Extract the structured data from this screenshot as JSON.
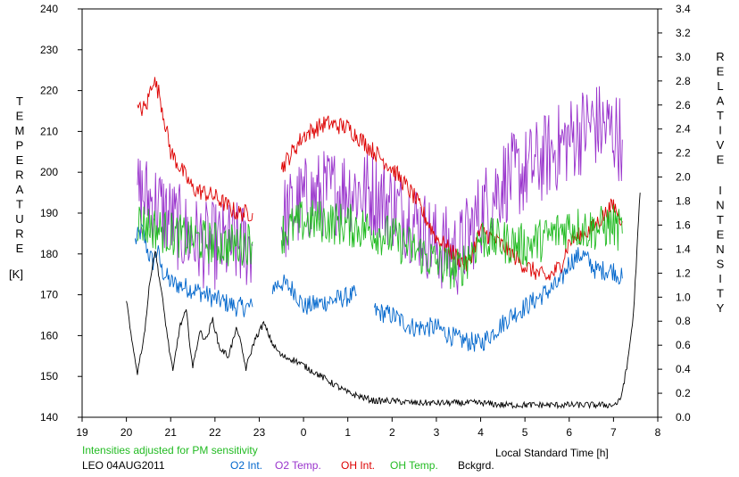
{
  "chart_data": {
    "type": "line",
    "station": "LEO 04AUG2011",
    "note": "Intensities adjusted for PM sensitivity",
    "xlabel": "Local Standard Time [h]",
    "ylabel_left_letters": [
      "T",
      "E",
      "M",
      "P",
      "E",
      "R",
      "A",
      "T",
      "U",
      "R",
      "E"
    ],
    "ylabel_left_unit": "[K]",
    "ylabel_right_letters": [
      "R",
      "E",
      "L",
      "A",
      "T",
      "I",
      "V",
      "E",
      "I",
      "N",
      "T",
      "E",
      "N",
      "S",
      "I",
      "T",
      "Y"
    ],
    "xlim": [
      19,
      32
    ],
    "x_tick_values": [
      19,
      20,
      21,
      22,
      23,
      24,
      25,
      26,
      27,
      28,
      29,
      30,
      31,
      32
    ],
    "x_tick_labels": [
      "19",
      "20",
      "21",
      "22",
      "23",
      "0",
      "1",
      "2",
      "3",
      "4",
      "5",
      "6",
      "7",
      "8"
    ],
    "ylim_left": [
      140,
      240
    ],
    "y_left_ticks": [
      "140",
      "150",
      "160",
      "170",
      "180",
      "190",
      "200",
      "210",
      "220",
      "230",
      "240"
    ],
    "ylim_right": [
      0.0,
      3.4
    ],
    "y_right_ticks": [
      "0.0",
      "0.2",
      "0.4",
      "0.6",
      "0.8",
      "1.0",
      "1.2",
      "1.4",
      "1.6",
      "1.8",
      "2.0",
      "2.2",
      "2.4",
      "2.6",
      "2.8",
      "3.0",
      "3.2",
      "3.4"
    ],
    "grid": false,
    "legend": [
      {
        "name": "O2 Int.",
        "color": "#0066cc"
      },
      {
        "name": "O2 Temp.",
        "color": "#9933cc"
      },
      {
        "name": "OH Int.",
        "color": "#dd0000"
      },
      {
        "name": "OH Temp.",
        "color": "#22bb22"
      },
      {
        "name": "Bckgrd.",
        "color": "#000000"
      }
    ],
    "note_color": "#22bb22",
    "series": [
      {
        "key": "o2int",
        "axis": "left",
        "color": "#0066cc",
        "noise": 2.5,
        "x": [
          20.2,
          20.35,
          20.5,
          20.6,
          20.7,
          20.8,
          21.0,
          21.3,
          21.6,
          22.0,
          22.5,
          22.85,
          23.0,
          23.3,
          23.5,
          23.8,
          24.0,
          24.4,
          24.8,
          25.2,
          25.4,
          25.6,
          26.0,
          26.3,
          26.5,
          27.0,
          27.5,
          28.0,
          28.3,
          28.7,
          29.0,
          29.4,
          29.8,
          30.0,
          30.3,
          30.6,
          31.0,
          31.2
        ],
        "y": [
          183,
          186,
          180,
          178,
          181,
          176,
          173,
          172,
          171,
          169,
          167,
          167,
          null,
          172,
          173,
          171,
          167,
          168,
          169,
          170,
          null,
          166,
          165,
          163,
          162,
          162,
          159,
          158,
          161,
          165,
          167,
          170,
          173,
          178,
          180,
          176,
          176,
          174
        ]
      },
      {
        "key": "o2temp",
        "axis": "left",
        "color": "#9933cc",
        "noise": 11,
        "x": [
          20.25,
          20.7,
          21.3,
          21.8,
          22.3,
          22.85,
          23.0,
          23.5,
          24.0,
          24.5,
          25.0,
          25.5,
          26.0,
          26.5,
          27.0,
          27.5,
          28.0,
          28.5,
          29.0,
          29.5,
          30.0,
          30.5,
          31.0,
          31.2
        ],
        "y": [
          195,
          192,
          185,
          182,
          182,
          182,
          null,
          188,
          193,
          195,
          196,
          195,
          192,
          188,
          182,
          180,
          190,
          198,
          200,
          204,
          208,
          212,
          210,
          208
        ]
      },
      {
        "key": "ohint",
        "axis": "left",
        "color": "#dd0000",
        "noise": 2.2,
        "x": [
          20.25,
          20.45,
          20.6,
          20.75,
          21.0,
          21.5,
          22.0,
          22.5,
          22.85,
          23.0,
          23.5,
          24.0,
          24.5,
          25.0,
          25.5,
          26.0,
          26.5,
          27.0,
          27.5,
          27.7,
          28.0,
          28.5,
          29.0,
          29.5,
          29.8,
          30.0,
          30.5,
          31.0,
          31.2
        ],
        "y": [
          215,
          216,
          223,
          219,
          205,
          196,
          194,
          190,
          190,
          null,
          201,
          209,
          212,
          211,
          206,
          201,
          194,
          184,
          179,
          177,
          186,
          182,
          177,
          174,
          177,
          183,
          186,
          192,
          188
        ]
      },
      {
        "key": "ohtemp",
        "axis": "left",
        "color": "#22bb22",
        "noise": 5.5,
        "x": [
          20.25,
          20.7,
          21.3,
          21.8,
          22.3,
          22.85,
          23.0,
          23.5,
          24.0,
          24.5,
          25.0,
          25.5,
          26.0,
          26.5,
          27.0,
          27.5,
          28.0,
          28.5,
          29.0,
          29.5,
          30.0,
          30.5,
          31.0,
          31.2
        ],
        "y": [
          188,
          186,
          184,
          183,
          182,
          183,
          null,
          185,
          188,
          188,
          187,
          186,
          184,
          181,
          178,
          176,
          184,
          183,
          182,
          184,
          187,
          186,
          187,
          185
        ]
      },
      {
        "key": "bckgrd",
        "axis": "left",
        "color": "#000000",
        "noise": 0.8,
        "x": [
          20.0,
          20.1,
          20.25,
          20.4,
          20.55,
          20.65,
          20.8,
          20.95,
          21.05,
          21.2,
          21.35,
          21.5,
          21.65,
          21.8,
          21.95,
          22.1,
          22.3,
          22.5,
          22.7,
          22.9,
          23.1,
          23.3,
          23.5,
          23.8,
          24.1,
          24.4,
          24.7,
          25.0,
          25.3,
          25.6,
          26.0,
          26.5,
          27.0,
          27.5,
          28.0,
          28.5,
          29.0,
          29.5,
          30.0,
          30.5,
          31.0,
          31.15,
          31.3,
          31.45,
          31.55,
          31.6
        ],
        "y": [
          169,
          160,
          151,
          160,
          175,
          181,
          170,
          158,
          151,
          162,
          166,
          152,
          161,
          159,
          164,
          157,
          155,
          162,
          152,
          159,
          163,
          158,
          155,
          154,
          152,
          150,
          148,
          146,
          145,
          144,
          144,
          143.5,
          143.5,
          143.5,
          143.5,
          143,
          143,
          143,
          143,
          143,
          143,
          144,
          152,
          165,
          185,
          195
        ]
      }
    ]
  }
}
